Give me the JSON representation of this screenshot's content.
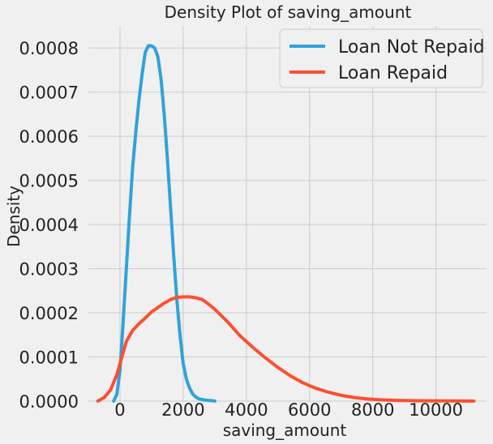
{
  "chart_data": {
    "type": "line",
    "title": "Density Plot of saving_amount",
    "xlabel": "saving_amount",
    "ylabel": "Density",
    "xlim": [
      -1000,
      11600
    ],
    "ylim": [
      0,
      0.00085
    ],
    "xticks": [
      0,
      2000,
      4000,
      6000,
      8000,
      10000
    ],
    "xtick_labels": [
      "0",
      "2000",
      "4000",
      "6000",
      "8000",
      "10000"
    ],
    "yticks": [
      0,
      0.0001,
      0.0002,
      0.0003,
      0.0004,
      0.0005,
      0.0006,
      0.0007,
      0.0008
    ],
    "ytick_labels": [
      "0.0000",
      "0.0001",
      "0.0002",
      "0.0003",
      "0.0004",
      "0.0005",
      "0.0006",
      "0.0007",
      "0.0008"
    ],
    "grid": true,
    "legend_position": "top-right",
    "series": [
      {
        "name": "Loan Not Repaid",
        "color": "#30a2da",
        "x": [
          -200,
          -100,
          0,
          100,
          200,
          300,
          400,
          500,
          600,
          700,
          800,
          900,
          1000,
          1100,
          1200,
          1300,
          1400,
          1500,
          1600,
          1700,
          1800,
          1900,
          2000,
          2100,
          2200,
          2300,
          2400,
          2500,
          2700,
          2900,
          3000
        ],
        "y": [
          0,
          1.5e-05,
          7e-05,
          0.00018,
          0.0003,
          0.00042,
          0.00053,
          0.00061,
          0.00068,
          0.00074,
          0.00079,
          0.000805,
          0.000805,
          0.0008,
          0.00078,
          0.00073,
          0.00065,
          0.00055,
          0.00044,
          0.00033,
          0.00023,
          0.00015,
          8.5e-05,
          5e-05,
          3e-05,
          1.6e-05,
          9e-06,
          5e-06,
          2e-06,
          1e-06,
          0
        ]
      },
      {
        "name": "Loan Repaid",
        "color": "#fc4f30",
        "x": [
          -700,
          -500,
          -300,
          -100,
          0,
          200,
          400,
          600,
          800,
          1000,
          1200,
          1400,
          1600,
          1800,
          2000,
          2200,
          2400,
          2600,
          2800,
          3000,
          3400,
          3800,
          4200,
          4600,
          5000,
          5400,
          5800,
          6200,
          6600,
          7000,
          7400,
          7800,
          8200,
          8800,
          9400,
          10000,
          10600,
          11200
        ],
        "y": [
          0,
          8e-06,
          2.5e-05,
          6e-05,
          8.5e-05,
          0.000135,
          0.00016,
          0.000175,
          0.000188,
          0.000202,
          0.000212,
          0.000222,
          0.00023,
          0.000235,
          0.000236,
          0.000236,
          0.000234,
          0.00023,
          0.00022,
          0.000208,
          0.00018,
          0.000148,
          0.000122,
          9.8e-05,
          7.6e-05,
          5.7e-05,
          4.1e-05,
          2.9e-05,
          2e-05,
          1.3e-05,
          8e-06,
          5e-06,
          3e-06,
          1.5e-06,
          8e-07,
          4e-07,
          2e-07,
          0
        ]
      }
    ]
  }
}
